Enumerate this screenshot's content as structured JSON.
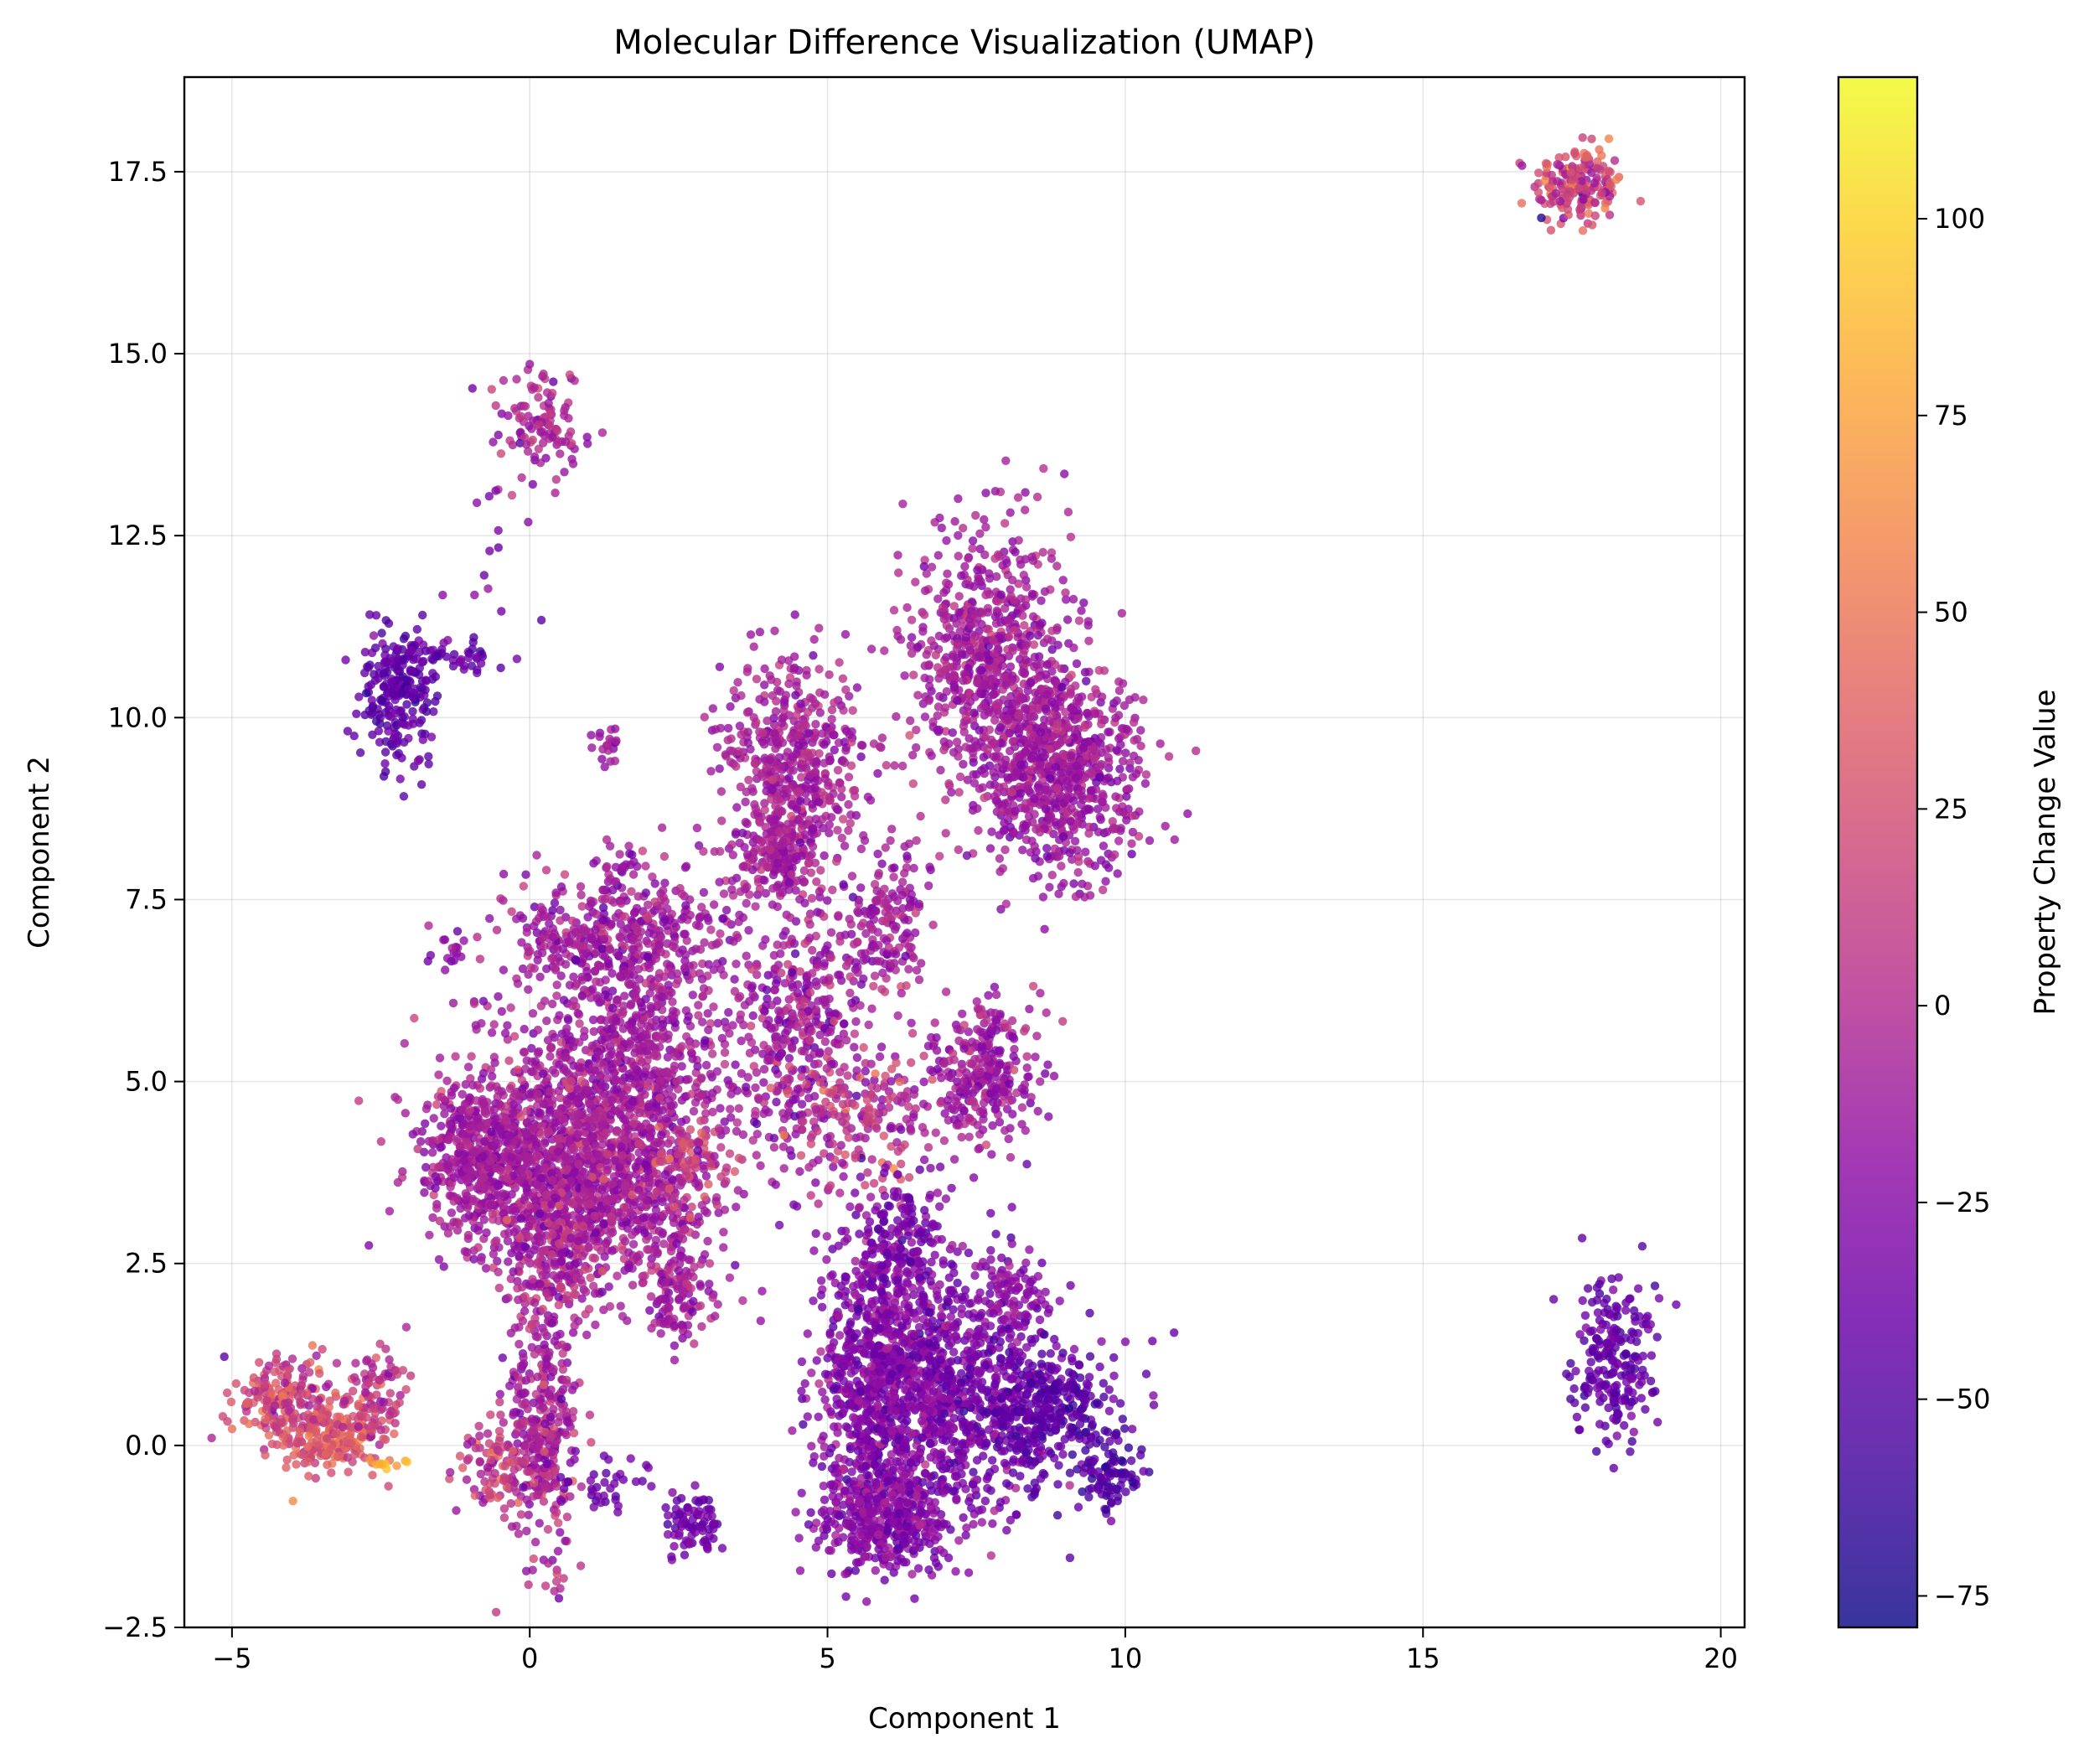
{
  "chart_data": {
    "type": "scatter",
    "title": "Molecular Difference Visualization (UMAP)",
    "xlabel": "Component 1",
    "ylabel": "Component 2",
    "xlim": [
      -5.8,
      20.4
    ],
    "ylim": [
      -2.5,
      18.8
    ],
    "xticks": [
      -5,
      0,
      5,
      10,
      15,
      20
    ],
    "xtick_labels": [
      "−5",
      "0",
      "5",
      "10",
      "15",
      "20"
    ],
    "yticks": [
      -2.5,
      0.0,
      2.5,
      5.0,
      7.5,
      10.0,
      12.5,
      15.0,
      17.5
    ],
    "ytick_labels": [
      "−2.5",
      "0.0",
      "2.5",
      "5.0",
      "7.5",
      "10.0",
      "12.5",
      "15.0",
      "17.5"
    ],
    "grid": true,
    "colormap": "plasma",
    "colorbar": {
      "label": "Property Change Value",
      "range": [
        -79,
        118
      ],
      "ticks": [
        -75,
        -50,
        -25,
        0,
        25,
        50,
        75,
        100
      ],
      "tick_labels": [
        "−75",
        "−50",
        "−25",
        "0",
        "25",
        "50",
        "75",
        "100"
      ]
    },
    "point_alpha": 0.8,
    "clusters": [
      {
        "center": [
          17.6,
          17.3
        ],
        "spread": [
          0.38,
          0.28
        ],
        "count": 180,
        "value_mean": 20,
        "value_sd": 22
      },
      {
        "center": [
          18.2,
          1.2
        ],
        "spread": [
          0.35,
          0.55
        ],
        "count": 220,
        "value_mean": -42,
        "value_sd": 8
      },
      {
        "center": [
          0.2,
          14.0
        ],
        "spread": [
          0.35,
          0.45
        ],
        "count": 110,
        "value_mean": -5,
        "value_sd": 12
      },
      {
        "center": [
          -0.6,
          12.6
        ],
        "spread": [
          0.35,
          0.8
        ],
        "count": 14,
        "value_mean": -30,
        "value_sd": 8
      },
      {
        "center": [
          -2.2,
          10.3
        ],
        "spread": [
          0.35,
          0.5
        ],
        "count": 220,
        "value_mean": -45,
        "value_sd": 8
      },
      {
        "center": [
          -1.3,
          10.85
        ],
        "spread": [
          0.5,
          0.15
        ],
        "count": 50,
        "value_mean": -40,
        "value_sd": 8
      },
      {
        "center": [
          1.3,
          9.6
        ],
        "spread": [
          0.15,
          0.2
        ],
        "count": 20,
        "value_mean": -8,
        "value_sd": 8
      },
      {
        "center": [
          -1.4,
          6.75
        ],
        "spread": [
          0.15,
          0.12
        ],
        "count": 14,
        "value_mean": -20,
        "value_sd": 8
      },
      {
        "center": [
          1.6,
          8.0
        ],
        "spread": [
          0.15,
          0.2
        ],
        "count": 20,
        "value_mean": -10,
        "value_sd": 8
      },
      {
        "center": [
          4.4,
          9.4
        ],
        "spread": [
          0.6,
          0.7
        ],
        "count": 500,
        "value_mean": -8,
        "value_sd": 10
      },
      {
        "center": [
          4.2,
          8.1
        ],
        "spread": [
          0.35,
          0.3
        ],
        "count": 150,
        "value_mean": -8,
        "value_sd": 10
      },
      {
        "center": [
          7.7,
          10.8
        ],
        "spread": [
          0.7,
          0.9
        ],
        "count": 650,
        "value_mean": -10,
        "value_sd": 10
      },
      {
        "center": [
          8.9,
          9.3
        ],
        "spread": [
          0.7,
          0.7
        ],
        "count": 750,
        "value_mean": -12,
        "value_sd": 10
      },
      {
        "center": [
          1.5,
          7.0
        ],
        "spread": [
          1.0,
          0.45
        ],
        "count": 450,
        "value_mean": -10,
        "value_sd": 12
      },
      {
        "center": [
          0.9,
          4.0
        ],
        "spread": [
          1.1,
          0.8
        ],
        "count": 1600,
        "value_mean": -8,
        "value_sd": 12
      },
      {
        "center": [
          -0.9,
          4.0
        ],
        "spread": [
          0.45,
          0.5
        ],
        "count": 350,
        "value_mean": -10,
        "value_sd": 10
      },
      {
        "center": [
          1.8,
          5.6
        ],
        "spread": [
          0.9,
          0.6
        ],
        "count": 350,
        "value_mean": -12,
        "value_sd": 10
      },
      {
        "center": [
          0.5,
          2.7
        ],
        "spread": [
          0.45,
          0.5
        ],
        "count": 250,
        "value_mean": -5,
        "value_sd": 15
      },
      {
        "center": [
          2.5,
          2.2
        ],
        "spread": [
          0.3,
          0.5
        ],
        "count": 150,
        "value_mean": -10,
        "value_sd": 12
      },
      {
        "center": [
          2.7,
          3.9
        ],
        "spread": [
          0.35,
          0.25
        ],
        "count": 60,
        "value_mean": 20,
        "value_sd": 15
      },
      {
        "center": [
          4.6,
          5.8
        ],
        "spread": [
          0.7,
          1.0
        ],
        "count": 450,
        "value_mean": -12,
        "value_sd": 14
      },
      {
        "center": [
          5.6,
          4.6
        ],
        "spread": [
          0.7,
          0.6
        ],
        "count": 150,
        "value_mean": 8,
        "value_sd": 18
      },
      {
        "center": [
          7.6,
          5.1
        ],
        "spread": [
          0.45,
          0.5
        ],
        "count": 300,
        "value_mean": -12,
        "value_sd": 12
      },
      {
        "center": [
          6.0,
          7.2
        ],
        "spread": [
          0.35,
          0.5
        ],
        "count": 150,
        "value_mean": -10,
        "value_sd": 10
      },
      {
        "center": [
          0.2,
          0.2
        ],
        "spread": [
          0.3,
          0.9
        ],
        "count": 350,
        "value_mean": -5,
        "value_sd": 15
      },
      {
        "center": [
          -0.6,
          -0.3
        ],
        "spread": [
          0.35,
          0.3
        ],
        "count": 90,
        "value_mean": 10,
        "value_sd": 18
      },
      {
        "center": [
          1.2,
          -0.5
        ],
        "spread": [
          0.35,
          0.2
        ],
        "count": 40,
        "value_mean": -35,
        "value_sd": 8
      },
      {
        "center": [
          2.8,
          -1.1
        ],
        "spread": [
          0.25,
          0.2
        ],
        "count": 80,
        "value_mean": -35,
        "value_sd": 8
      },
      {
        "center": [
          -4.1,
          0.6
        ],
        "spread": [
          0.4,
          0.3
        ],
        "count": 200,
        "value_mean": 20,
        "value_sd": 18
      },
      {
        "center": [
          -3.3,
          0.1
        ],
        "spread": [
          0.45,
          0.25
        ],
        "count": 200,
        "value_mean": 30,
        "value_sd": 15
      },
      {
        "center": [
          -2.6,
          0.7
        ],
        "spread": [
          0.25,
          0.3
        ],
        "count": 80,
        "value_mean": 5,
        "value_sd": 15
      },
      {
        "center": [
          -2.4,
          -0.25
        ],
        "spread": [
          0.2,
          0.05
        ],
        "count": 10,
        "value_mean": 85,
        "value_sd": 10
      },
      {
        "center": [
          5.8,
          0.9
        ],
        "spread": [
          0.5,
          1.0
        ],
        "count": 700,
        "value_mean": -25,
        "value_sd": 12
      },
      {
        "center": [
          7.1,
          0.9
        ],
        "spread": [
          0.8,
          0.9
        ],
        "count": 800,
        "value_mean": -30,
        "value_sd": 12
      },
      {
        "center": [
          6.0,
          -1.0
        ],
        "spread": [
          0.6,
          0.35
        ],
        "count": 400,
        "value_mean": -25,
        "value_sd": 12
      },
      {
        "center": [
          8.8,
          0.6
        ],
        "spread": [
          0.6,
          0.4
        ],
        "count": 300,
        "value_mean": -45,
        "value_sd": 10
      },
      {
        "center": [
          9.7,
          -0.4
        ],
        "spread": [
          0.25,
          0.3
        ],
        "count": 90,
        "value_mean": -52,
        "value_sd": 8
      },
      {
        "center": [
          8.4,
          -0.2
        ],
        "spread": [
          0.25,
          0.3
        ],
        "count": 40,
        "value_mean": -45,
        "value_sd": 8
      },
      {
        "center": [
          6.2,
          2.8
        ],
        "spread": [
          0.4,
          0.4
        ],
        "count": 150,
        "value_mean": -30,
        "value_sd": 12
      },
      {
        "center": [
          8.1,
          2.1
        ],
        "spread": [
          0.3,
          0.3
        ],
        "count": 70,
        "value_mean": -20,
        "value_sd": 10
      }
    ]
  }
}
